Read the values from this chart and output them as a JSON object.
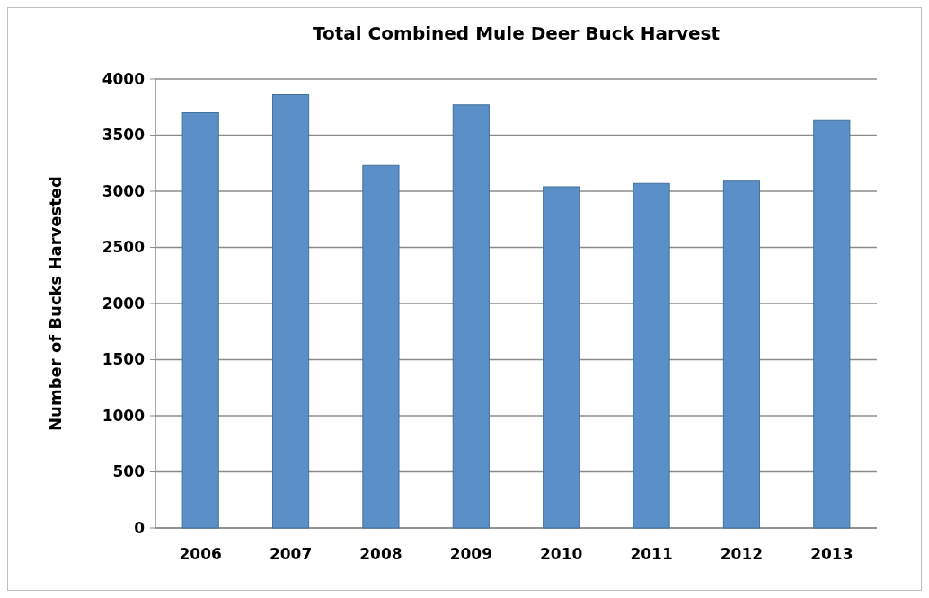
{
  "chart_data": {
    "type": "bar",
    "title": "Total Combined Mule Deer Buck Harvest",
    "ylabel": "Number of Bucks Harvested",
    "categories": [
      "2006",
      "2007",
      "2008",
      "2009",
      "2010",
      "2011",
      "2012",
      "2013"
    ],
    "series": [
      {
        "color": "#5b8fc7",
        "values": [
          3700,
          3860,
          3230,
          3770,
          3040,
          3070,
          3090,
          3630
        ]
      }
    ],
    "ylim": [
      0,
      4000
    ],
    "yticks": [
      0,
      500,
      1000,
      1500,
      2000,
      2500,
      3000,
      3500,
      4000
    ],
    "grid": "y"
  }
}
